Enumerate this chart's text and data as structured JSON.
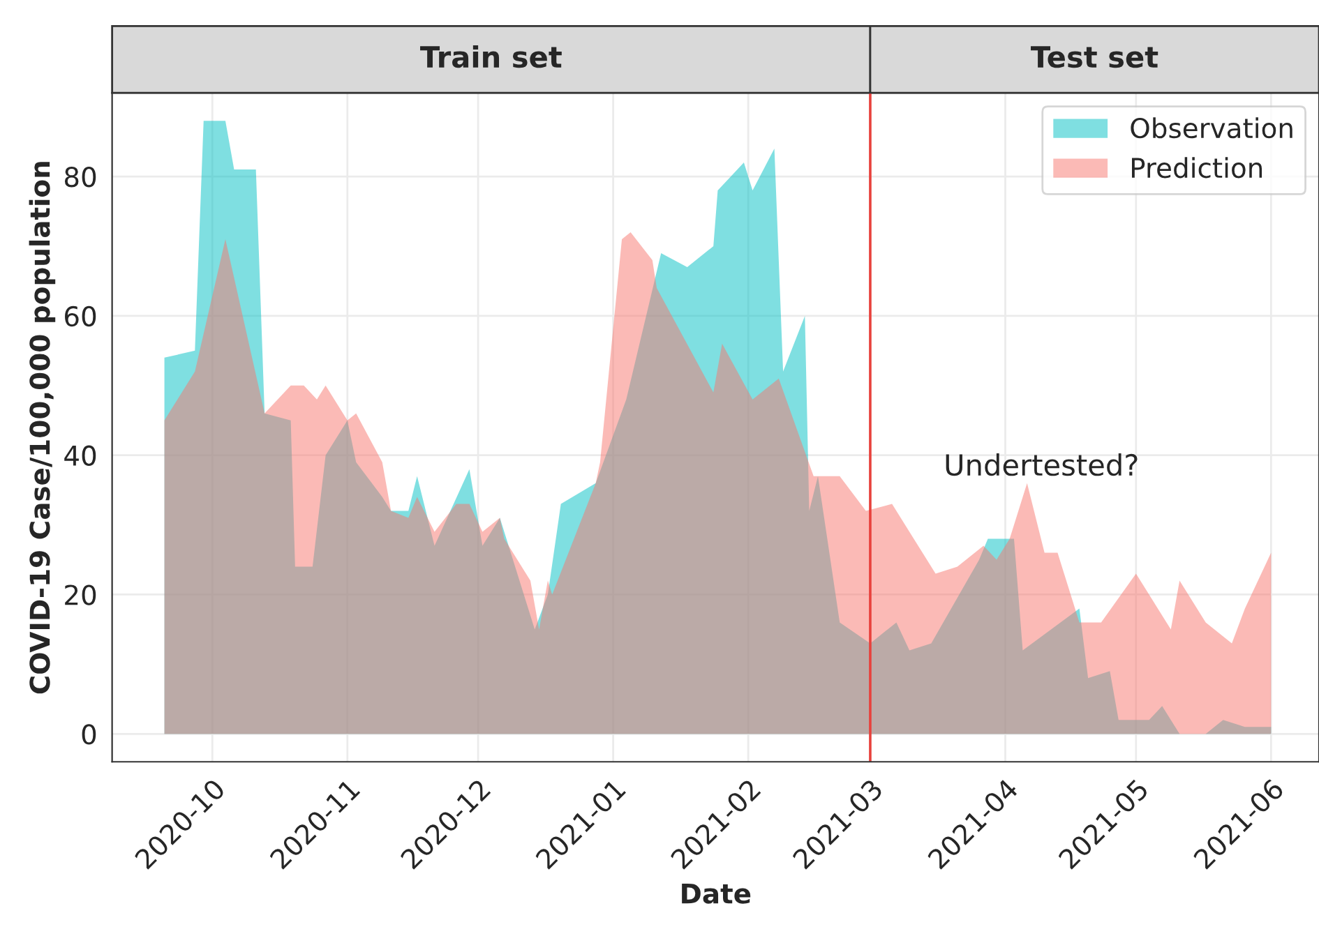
{
  "chart_data": {
    "type": "area",
    "xlabel": "Date",
    "ylabel": "COVID-19 Case/100,000 population",
    "xlim": [
      "2020-09-08",
      "2021-06-12"
    ],
    "xticks": [
      {
        "value": "2020-10-01",
        "label": "2020-10"
      },
      {
        "value": "2020-11-01",
        "label": "2020-11"
      },
      {
        "value": "2020-12-01",
        "label": "2020-12"
      },
      {
        "value": "2021-01-01",
        "label": "2021-01"
      },
      {
        "value": "2021-02-01",
        "label": "2021-02"
      },
      {
        "value": "2021-03-01",
        "label": "2021-03"
      },
      {
        "value": "2021-04-01",
        "label": "2021-04"
      },
      {
        "value": "2021-05-01",
        "label": "2021-05"
      },
      {
        "value": "2021-06-01",
        "label": "2021-06"
      }
    ],
    "ylim": [
      -4,
      92
    ],
    "yticks": [
      0,
      20,
      40,
      60,
      80
    ],
    "grid": true,
    "legend": "top right",
    "series": [
      {
        "name": "Observation",
        "color": "#00bfc4",
        "x": [
          "2020-09-20",
          "2020-09-27",
          "2020-09-29",
          "2020-10-04",
          "2020-10-06",
          "2020-10-11",
          "2020-10-13",
          "2020-10-19",
          "2020-10-20",
          "2020-10-24",
          "2020-10-27",
          "2020-11-01",
          "2020-11-03",
          "2020-11-09",
          "2020-11-11",
          "2020-11-15",
          "2020-11-17",
          "2020-11-21",
          "2020-11-29",
          "2020-12-02",
          "2020-12-06",
          "2020-12-14",
          "2020-12-17",
          "2020-12-20",
          "2020-12-28",
          "2021-01-04",
          "2021-01-12",
          "2021-01-18",
          "2021-01-24",
          "2021-01-25",
          "2021-01-31",
          "2021-02-02",
          "2021-02-07",
          "2021-02-09",
          "2021-02-14",
          "2021-02-15",
          "2021-02-17",
          "2021-02-22",
          "2021-03-01",
          "2021-03-07",
          "2021-03-10",
          "2021-03-15",
          "2021-03-26",
          "2021-03-28",
          "2021-04-03",
          "2021-04-05",
          "2021-04-18",
          "2021-04-20",
          "2021-04-25",
          "2021-04-27",
          "2021-05-04",
          "2021-05-07",
          "2021-05-11",
          "2021-05-17",
          "2021-05-21",
          "2021-05-26",
          "2021-06-01"
        ],
        "values": [
          54,
          55,
          88,
          88,
          81,
          81,
          46,
          45,
          24,
          24,
          40,
          45,
          39,
          34,
          32,
          32,
          37,
          27,
          38,
          27,
          31,
          15,
          20,
          33,
          36,
          48,
          69,
          67,
          70,
          78,
          82,
          78,
          84,
          52,
          60,
          32,
          37,
          16,
          13,
          16,
          12,
          13,
          25,
          28,
          28,
          12,
          18,
          8,
          9,
          2,
          2,
          4,
          0,
          0,
          2,
          1,
          1
        ]
      },
      {
        "name": "Prediction",
        "color": "#f8766d",
        "x": [
          "2020-09-20",
          "2020-09-23",
          "2020-09-27",
          "2020-10-04",
          "2020-10-13",
          "2020-10-19",
          "2020-10-22",
          "2020-10-25",
          "2020-10-27",
          "2020-11-01",
          "2020-11-03",
          "2020-11-09",
          "2020-11-11",
          "2020-11-15",
          "2020-11-17",
          "2020-11-21",
          "2020-11-26",
          "2020-11-29",
          "2020-12-02",
          "2020-12-06",
          "2020-12-07",
          "2020-12-13",
          "2020-12-15",
          "2020-12-17",
          "2020-12-18",
          "2020-12-28",
          "2020-12-29",
          "2021-01-03",
          "2021-01-05",
          "2021-01-10",
          "2021-01-11",
          "2021-01-24",
          "2021-01-26",
          "2021-02-02",
          "2021-02-08",
          "2021-02-16",
          "2021-02-22",
          "2021-02-28",
          "2021-03-06",
          "2021-03-16",
          "2021-03-21",
          "2021-03-27",
          "2021-03-30",
          "2021-04-02",
          "2021-04-06",
          "2021-04-10",
          "2021-04-13",
          "2021-04-18",
          "2021-04-23",
          "2021-05-01",
          "2021-05-09",
          "2021-05-11",
          "2021-05-17",
          "2021-05-23",
          "2021-05-26",
          "2021-06-01"
        ],
        "values": [
          45,
          48,
          52,
          71,
          46,
          50,
          50,
          48,
          50,
          45,
          46,
          39,
          32,
          31,
          34,
          29,
          33,
          33,
          29,
          31,
          28,
          22,
          15,
          22,
          20,
          36,
          39,
          71,
          72,
          68,
          64,
          49,
          56,
          48,
          51,
          37,
          37,
          32,
          33,
          23,
          24,
          27,
          25,
          28,
          36,
          26,
          26,
          16,
          16,
          23,
          15,
          22,
          16,
          13,
          18,
          26
        ]
      }
    ],
    "ref_lines": [
      {
        "axis": "x",
        "value": "2021-03-01",
        "color": "#e8413c"
      }
    ],
    "annotations": [
      "Train set",
      "Test set",
      "Undertested?"
    ]
  }
}
